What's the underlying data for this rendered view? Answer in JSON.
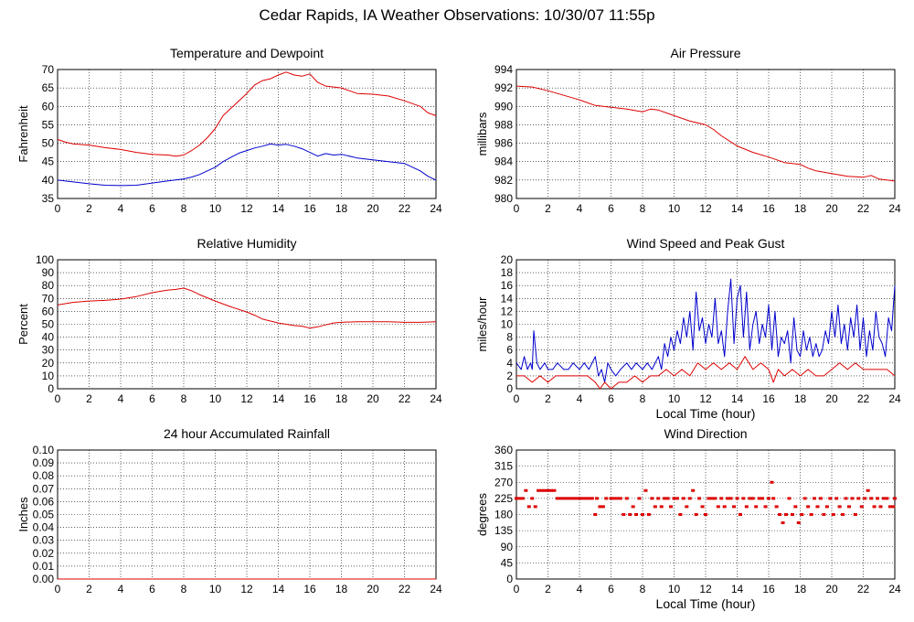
{
  "page": {
    "title": "Cedar Rapids, IA Weather Observations: 10/30/07 11:55p"
  },
  "chart_data": [
    {
      "id": "temp",
      "type": "line",
      "title": "Temperature and Dewpoint",
      "xlabel": "",
      "ylabel": "Fahrenheit",
      "xlim": [
        0,
        24
      ],
      "ylim": [
        35,
        70
      ],
      "xticks": [
        0,
        2,
        4,
        6,
        8,
        10,
        12,
        14,
        16,
        18,
        20,
        22,
        24
      ],
      "yticks": [
        35,
        40,
        45,
        50,
        55,
        60,
        65,
        70
      ],
      "grid": true,
      "series": [
        {
          "color": "#dd0000",
          "x": [
            0,
            0.5,
            1,
            2,
            3,
            4,
            5,
            6,
            7,
            7.5,
            8,
            8.5,
            9,
            9.5,
            10,
            10.5,
            11,
            11.5,
            12,
            12.5,
            13,
            13.5,
            14,
            14.5,
            15,
            15.5,
            16,
            16.5,
            17,
            18,
            19,
            20,
            21,
            22,
            23,
            23.5,
            24
          ],
          "y": [
            51,
            50.3,
            49.8,
            49.5,
            48.8,
            48.3,
            47.5,
            47,
            46.8,
            46.5,
            46.8,
            48,
            49.5,
            51.5,
            54,
            57.5,
            59.5,
            61.5,
            63.5,
            65.8,
            67,
            67.5,
            68.5,
            69.3,
            68.5,
            68.2,
            68.8,
            66.5,
            65.5,
            65,
            63.5,
            63.3,
            62.8,
            61.5,
            60,
            58.2,
            57.5
          ]
        },
        {
          "color": "#0000cc",
          "x": [
            0,
            1,
            2,
            3,
            4,
            5,
            6,
            7,
            8,
            8.5,
            9,
            9.5,
            10,
            10.5,
            11,
            11.5,
            12,
            12.5,
            13,
            13.5,
            14,
            14.5,
            15,
            15.5,
            16,
            16.5,
            17,
            17.5,
            18,
            19,
            20,
            21,
            22,
            23,
            23.5,
            24
          ],
          "y": [
            40,
            39.5,
            39,
            38.6,
            38.5,
            38.6,
            39.2,
            39.8,
            40.3,
            40.8,
            41.5,
            42.5,
            43.5,
            45,
            46.2,
            47.3,
            48,
            48.7,
            49.2,
            49.8,
            49.5,
            49.7,
            49.2,
            48.5,
            47.5,
            46.5,
            47.2,
            46.8,
            47,
            46,
            45.5,
            45,
            44.5,
            42.5,
            41,
            40
          ]
        }
      ]
    },
    {
      "id": "pressure",
      "type": "line",
      "title": "Air Pressure",
      "xlabel": "",
      "ylabel": "millibars",
      "xlim": [
        0,
        24
      ],
      "ylim": [
        980,
        994
      ],
      "xticks": [
        0,
        2,
        4,
        6,
        8,
        10,
        12,
        14,
        16,
        18,
        20,
        22,
        24
      ],
      "yticks": [
        980,
        982,
        984,
        986,
        988,
        990,
        992,
        994
      ],
      "grid": true,
      "series": [
        {
          "color": "#dd0000",
          "x": [
            0,
            1,
            2,
            3,
            4,
            5,
            6,
            7,
            8,
            8.5,
            9,
            10,
            11,
            12,
            12.5,
            13,
            14,
            15,
            16,
            17,
            18,
            18.5,
            19,
            20,
            21,
            22,
            22.5,
            23,
            24
          ],
          "y": [
            992.2,
            992.1,
            991.7,
            991.2,
            990.7,
            990.1,
            989.9,
            989.7,
            989.4,
            989.7,
            989.6,
            989.0,
            988.4,
            988.0,
            987.5,
            986.8,
            985.7,
            985.0,
            984.5,
            983.9,
            983.7,
            983.3,
            983.0,
            982.7,
            982.4,
            982.3,
            982.5,
            982.1,
            981.9
          ]
        }
      ]
    },
    {
      "id": "humidity",
      "type": "line",
      "title": "Relative Humidity",
      "xlabel": "",
      "ylabel": "Percent",
      "xlim": [
        0,
        24
      ],
      "ylim": [
        0,
        100
      ],
      "xticks": [
        0,
        2,
        4,
        6,
        8,
        10,
        12,
        14,
        16,
        18,
        20,
        22,
        24
      ],
      "yticks": [
        0,
        10,
        20,
        30,
        40,
        50,
        60,
        70,
        80,
        90,
        100
      ],
      "grid": true,
      "series": [
        {
          "color": "#dd0000",
          "x": [
            0,
            1,
            2,
            3,
            4,
            5,
            6,
            6.5,
            7,
            7.5,
            8,
            8.5,
            9,
            10,
            11,
            12,
            12.5,
            13,
            13.5,
            14,
            15,
            15.5,
            16,
            16.5,
            17,
            17.5,
            18,
            19,
            20,
            21,
            22,
            23,
            24
          ],
          "y": [
            65,
            67,
            68,
            68.5,
            69.5,
            71.5,
            74.5,
            75.5,
            76.5,
            77,
            78,
            76,
            73,
            68,
            63.5,
            59.5,
            57,
            54,
            52.5,
            51,
            49,
            48.5,
            47,
            48,
            49.5,
            51,
            51.5,
            52,
            52,
            52,
            51.5,
            51.5,
            52
          ]
        }
      ]
    },
    {
      "id": "wind",
      "type": "line",
      "title": "Wind Speed and Peak Gust",
      "xlabel": "Local Time (hour)",
      "ylabel": "miles/hour",
      "xlim": [
        0,
        24
      ],
      "ylim": [
        0,
        20
      ],
      "xticks": [
        0,
        2,
        4,
        6,
        8,
        10,
        12,
        14,
        16,
        18,
        20,
        22,
        24
      ],
      "yticks": [
        0,
        2,
        4,
        6,
        8,
        10,
        12,
        14,
        16,
        18,
        20
      ],
      "grid": true,
      "series": [
        {
          "color": "#0000cc",
          "x": [
            0,
            0.3,
            0.5,
            0.7,
            0.9,
            1.0,
            1.1,
            1.3,
            1.5,
            1.8,
            2.0,
            2.3,
            2.6,
            3.0,
            3.3,
            3.6,
            4.0,
            4.3,
            4.6,
            5.0,
            5.2,
            5.4,
            5.6,
            5.8,
            6.0,
            6.3,
            6.6,
            7.0,
            7.3,
            7.6,
            8.0,
            8.3,
            8.6,
            9.0,
            9.2,
            9.4,
            9.6,
            9.8,
            10.0,
            10.2,
            10.4,
            10.6,
            10.8,
            11.0,
            11.2,
            11.4,
            11.6,
            11.8,
            12.0,
            12.2,
            12.4,
            12.6,
            12.8,
            13.0,
            13.2,
            13.4,
            13.6,
            13.8,
            14.0,
            14.2,
            14.4,
            14.6,
            14.8,
            15.0,
            15.2,
            15.4,
            15.6,
            15.8,
            16.0,
            16.2,
            16.4,
            16.6,
            16.8,
            17.0,
            17.2,
            17.4,
            17.6,
            17.8,
            18.0,
            18.2,
            18.4,
            18.6,
            18.8,
            19.0,
            19.2,
            19.4,
            19.6,
            19.8,
            20.0,
            20.2,
            20.4,
            20.6,
            20.8,
            21.0,
            21.2,
            21.4,
            21.6,
            21.8,
            22.0,
            22.2,
            22.4,
            22.6,
            22.8,
            23.0,
            23.2,
            23.4,
            23.6,
            23.8,
            24.0
          ],
          "y": [
            4,
            3,
            5,
            3,
            4,
            3,
            9,
            4,
            3,
            4,
            3,
            3,
            4,
            3,
            3,
            4,
            3,
            4,
            3,
            5,
            2,
            3,
            1,
            4,
            3,
            2,
            3,
            4,
            3,
            4,
            3,
            4,
            3,
            5,
            3,
            7,
            5,
            8,
            6,
            9,
            7,
            11,
            8,
            12,
            6,
            15,
            9,
            11,
            7,
            10,
            8,
            14,
            7,
            9,
            5,
            12,
            17,
            7,
            14,
            16,
            8,
            15,
            6,
            10,
            12,
            7,
            10,
            8,
            13,
            6,
            12,
            5,
            8,
            7,
            9,
            4,
            11,
            6,
            5,
            9,
            6,
            8,
            5,
            7,
            5,
            6,
            9,
            7,
            12,
            8,
            13,
            7,
            10,
            6,
            11,
            8,
            13,
            6,
            11,
            5,
            9,
            6,
            12,
            8,
            7,
            5,
            11,
            9,
            16
          ]
        },
        {
          "color": "#dd0000",
          "x": [
            0,
            0.5,
            1.0,
            1.5,
            2.0,
            2.5,
            3.0,
            3.5,
            4.0,
            4.5,
            5.0,
            5.3,
            5.6,
            6.0,
            6.5,
            7.0,
            7.5,
            8.0,
            8.5,
            9.0,
            9.5,
            10.0,
            10.5,
            11.0,
            11.5,
            12.0,
            12.5,
            13.0,
            13.5,
            14.0,
            14.5,
            15.0,
            15.5,
            16.0,
            16.3,
            16.6,
            17.0,
            17.5,
            18.0,
            18.5,
            19.0,
            19.5,
            20.0,
            20.5,
            21.0,
            21.5,
            22.0,
            22.5,
            23.0,
            23.5,
            24.0
          ],
          "y": [
            2,
            2,
            1,
            2,
            1,
            2,
            2,
            2,
            2,
            2,
            1,
            0,
            1,
            0,
            1,
            1,
            2,
            1,
            2,
            2,
            3,
            2,
            3,
            2,
            4,
            3,
            4,
            3,
            4,
            3,
            5,
            3,
            4,
            3,
            1,
            3,
            2,
            3,
            2,
            3,
            2,
            2,
            3,
            4,
            3,
            4,
            3,
            3,
            3,
            3,
            2
          ]
        }
      ]
    },
    {
      "id": "rain",
      "type": "line",
      "title": "24 hour Accumulated Rainfall",
      "xlabel": "",
      "ylabel": "Inches",
      "xlim": [
        0,
        24
      ],
      "ylim": [
        0,
        0.1
      ],
      "xticks": [
        0,
        2,
        4,
        6,
        8,
        10,
        12,
        14,
        16,
        18,
        20,
        22,
        24
      ],
      "yticks": [
        0,
        0.01,
        0.02,
        0.03,
        0.04,
        0.05,
        0.06,
        0.07,
        0.08,
        0.09,
        0.1
      ],
      "ytick_labels": [
        "0.00",
        "0.01",
        "0.02",
        "0.03",
        "0.04",
        "0.05",
        "0.06",
        "0.07",
        "0.08",
        "0.09",
        "0.10"
      ],
      "grid": true,
      "series": [
        {
          "color": "#dd0000",
          "x": [
            0,
            24
          ],
          "y": [
            0,
            0
          ]
        }
      ]
    },
    {
      "id": "direction",
      "type": "scatter",
      "title": "Wind Direction",
      "xlabel": "Local Time (hour)",
      "ylabel": "degrees",
      "xlim": [
        0,
        24
      ],
      "ylim": [
        0,
        360
      ],
      "xticks": [
        0,
        2,
        4,
        6,
        8,
        10,
        12,
        14,
        16,
        18,
        20,
        22,
        24
      ],
      "yticks": [
        0,
        45,
        90,
        135,
        180,
        225,
        270,
        315,
        360
      ],
      "grid": true,
      "series": [
        {
          "color": "#dd0000",
          "x": [
            0,
            0.2,
            0.4,
            0.6,
            0.8,
            1.0,
            1.2,
            1.4,
            1.6,
            1.8,
            2.0,
            2.2,
            2.4,
            2.6,
            2.8,
            3.0,
            3.2,
            3.4,
            3.6,
            3.8,
            4.0,
            4.2,
            4.4,
            4.6,
            4.8,
            5.0,
            5.1,
            5.3,
            5.5,
            5.7,
            6.0,
            6.2,
            6.4,
            6.6,
            6.8,
            7.0,
            7.2,
            7.4,
            7.6,
            7.8,
            8.0,
            8.2,
            8.4,
            8.6,
            8.8,
            9.0,
            9.2,
            9.4,
            9.6,
            9.8,
            10.0,
            10.2,
            10.4,
            10.6,
            10.8,
            11.0,
            11.2,
            11.4,
            11.6,
            11.8,
            12.0,
            12.2,
            12.4,
            12.6,
            12.8,
            13.0,
            13.2,
            13.4,
            13.6,
            13.8,
            14.0,
            14.2,
            14.4,
            14.6,
            14.8,
            15.0,
            15.2,
            15.4,
            15.6,
            15.8,
            16.0,
            16.2,
            16.3,
            16.5,
            16.7,
            16.9,
            17.1,
            17.3,
            17.5,
            17.7,
            17.9,
            18.1,
            18.3,
            18.5,
            18.7,
            18.9,
            19.1,
            19.3,
            19.5,
            19.7,
            19.9,
            20.1,
            20.3,
            20.5,
            20.7,
            20.9,
            21.1,
            21.3,
            21.5,
            21.7,
            21.9,
            22.1,
            22.3,
            22.5,
            22.7,
            22.9,
            23.1,
            23.3,
            23.5,
            23.7,
            23.9,
            24.0
          ],
          "y": [
            225,
            225,
            225,
            247,
            202,
            225,
            202,
            247,
            247,
            247,
            247,
            247,
            247,
            225,
            225,
            225,
            225,
            225,
            225,
            225,
            225,
            225,
            225,
            225,
            225,
            180,
            225,
            202,
            202,
            225,
            225,
            225,
            225,
            225,
            180,
            225,
            180,
            202,
            180,
            225,
            180,
            247,
            180,
            225,
            202,
            225,
            202,
            225,
            225,
            202,
            225,
            225,
            180,
            225,
            202,
            225,
            247,
            180,
            225,
            202,
            180,
            225,
            225,
            225,
            202,
            225,
            202,
            225,
            225,
            202,
            225,
            180,
            225,
            202,
            225,
            225,
            202,
            225,
            225,
            202,
            225,
            270,
            225,
            202,
            180,
            157,
            180,
            225,
            180,
            202,
            157,
            180,
            225,
            202,
            180,
            225,
            202,
            225,
            180,
            202,
            225,
            180,
            225,
            202,
            180,
            225,
            202,
            225,
            180,
            225,
            202,
            225,
            247,
            225,
            202,
            225,
            202,
            225,
            225,
            202,
            202,
            225
          ]
        }
      ]
    }
  ]
}
